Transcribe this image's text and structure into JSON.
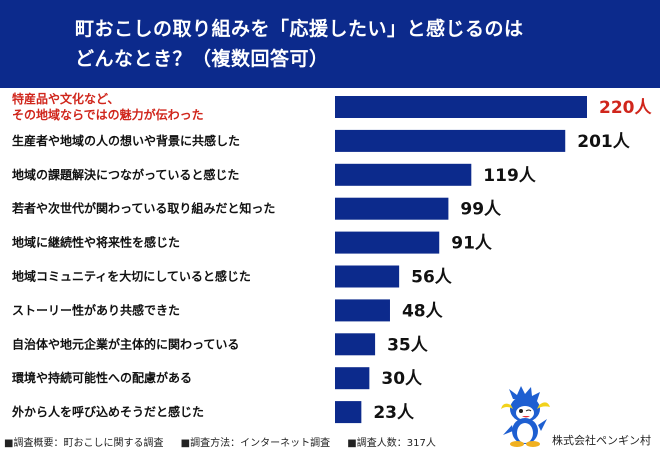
{
  "header": {
    "title_line1": "町おこしの取り組みを「応援したい」と感じるのは",
    "title_line2": "どんなとき？（複数回答可）"
  },
  "chart_data": {
    "type": "bar",
    "orientation": "horizontal",
    "categories": [
      [
        "特産品や文化など、",
        "その地域ならではの魅力が伝わった"
      ],
      [
        "生産者や地域の人の想いや背景に共感した"
      ],
      [
        "地域の課題解決につながっていると感じた"
      ],
      [
        "若者や次世代が関わっている取り組みだと知った"
      ],
      [
        "地域に継続性や将来性を感じた"
      ],
      [
        "地域コミュニティを大切にしていると感じた"
      ],
      [
        "ストーリー性があり共感できた"
      ],
      [
        "自治体や地元企業が主体的に関わっている"
      ],
      [
        "環境や持続可能性への配慮がある"
      ],
      [
        "外から人を呼び込めそうだと感じた"
      ]
    ],
    "values": [
      220,
      201,
      119,
      99,
      91,
      56,
      48,
      35,
      30,
      23
    ],
    "value_labels": [
      "220人",
      "201人",
      "119人",
      "99人",
      "91人",
      "56人",
      "48人",
      "35人",
      "30人",
      "23人"
    ],
    "highlight_index": 0,
    "bar_color": "#0c2a8c",
    "highlight_text_color": "#d0261c",
    "grid": false
  },
  "footer": {
    "items": [
      "■調査概要：町おこしに関する調査",
      "■調査方法：インターネット調査",
      "■調査人数：317人"
    ],
    "company": "株式会社ペンギン村"
  }
}
